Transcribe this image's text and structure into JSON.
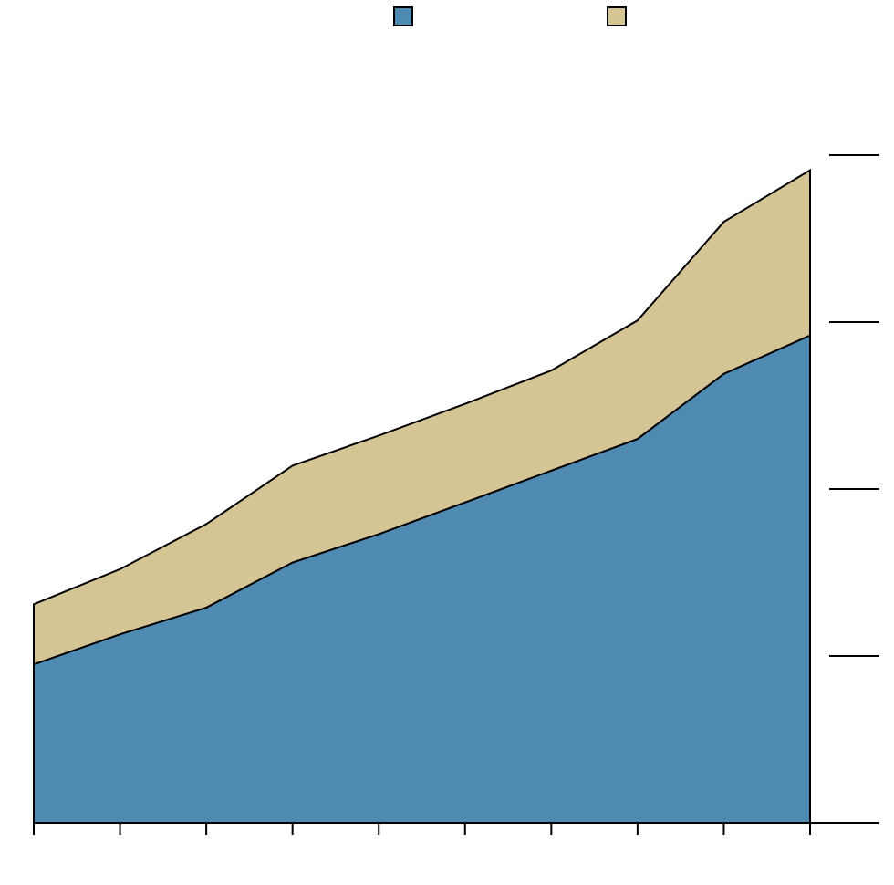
{
  "chart_data": {
    "type": "area",
    "stacked": true,
    "x": [
      1,
      2,
      3,
      4,
      5,
      6,
      7,
      8,
      9,
      10
    ],
    "series": [
      {
        "color": "#4f8ab2",
        "values": [
          0.95,
          1.13,
          1.29,
          1.56,
          1.73,
          1.92,
          2.11,
          2.3,
          2.69,
          2.92
        ]
      },
      {
        "color": "#d5c595",
        "values": [
          0.36,
          0.39,
          0.5,
          0.58,
          0.59,
          0.59,
          0.6,
          0.71,
          0.91,
          0.99
        ]
      }
    ],
    "ylim": [
      0,
      4
    ],
    "y_ticks": [
      1,
      2,
      3,
      4
    ],
    "y_tick_labels_visible": false,
    "x_tick_labels_visible": false,
    "grid": false,
    "legend_position": "top-center",
    "outline_color": "#000000"
  }
}
